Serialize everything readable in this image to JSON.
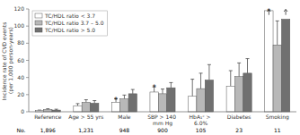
{
  "chart_data": {
    "type": "bar",
    "categories": [
      "Reference",
      "Age > 55 yrs",
      "Male",
      "SBP > 140 mm Hg",
      "HbA₁ᶜ > 6.0%",
      "Diabetes",
      "Smoking"
    ],
    "series": [
      {
        "name": "TC/HDL ratio < 3.7",
        "color": "white",
        "values": [
          1.5,
          7.0,
          11.0,
          23.0,
          18.0,
          30.0,
          118.0
        ],
        "errors": [
          0.5,
          2.5,
          4.0,
          6.0,
          20.0,
          18.0,
          0.0
        ]
      },
      {
        "name": "TC/HDL ratio 3.7 – 5.0",
        "color": "#b8b8b8",
        "values": [
          2.5,
          11.0,
          15.0,
          21.0,
          27.0,
          41.0,
          78.0
        ],
        "errors": [
          1.0,
          3.0,
          4.5,
          5.5,
          18.0,
          16.0,
          28.0
        ]
      },
      {
        "name": "TC/HDL ratio > 5.0",
        "color": "#707070",
        "values": [
          2.0,
          10.0,
          21.0,
          28.0,
          37.0,
          45.0,
          108.0
        ],
        "errors": [
          1.0,
          3.0,
          5.0,
          6.0,
          18.0,
          17.0,
          0.0
        ]
      }
    ],
    "ylabel": "Incidence rate of CVD events (per 1,000 person-years)",
    "ylim": [
      0,
      120
    ],
    "yticks": [
      0,
      20,
      40,
      60,
      80,
      100,
      120
    ],
    "numbers_label": "No.",
    "numbers": [
      "1,896",
      "1,231",
      "948",
      "900",
      "105",
      "23",
      "11"
    ],
    "annotations": [
      {
        "text": "*",
        "category": 2,
        "series": 0
      },
      {
        "text": "*",
        "category": 3,
        "series": 0
      },
      {
        "text": "*",
        "category": 6,
        "series": 0
      },
      {
        "type": "arrow",
        "category": 6,
        "series": 0,
        "from": 113,
        "to": 119.5
      },
      {
        "type": "arrow",
        "category": 6,
        "series": 2,
        "from": 113,
        "to": 119.5
      }
    ],
    "grid": false,
    "legend": "upper left"
  }
}
